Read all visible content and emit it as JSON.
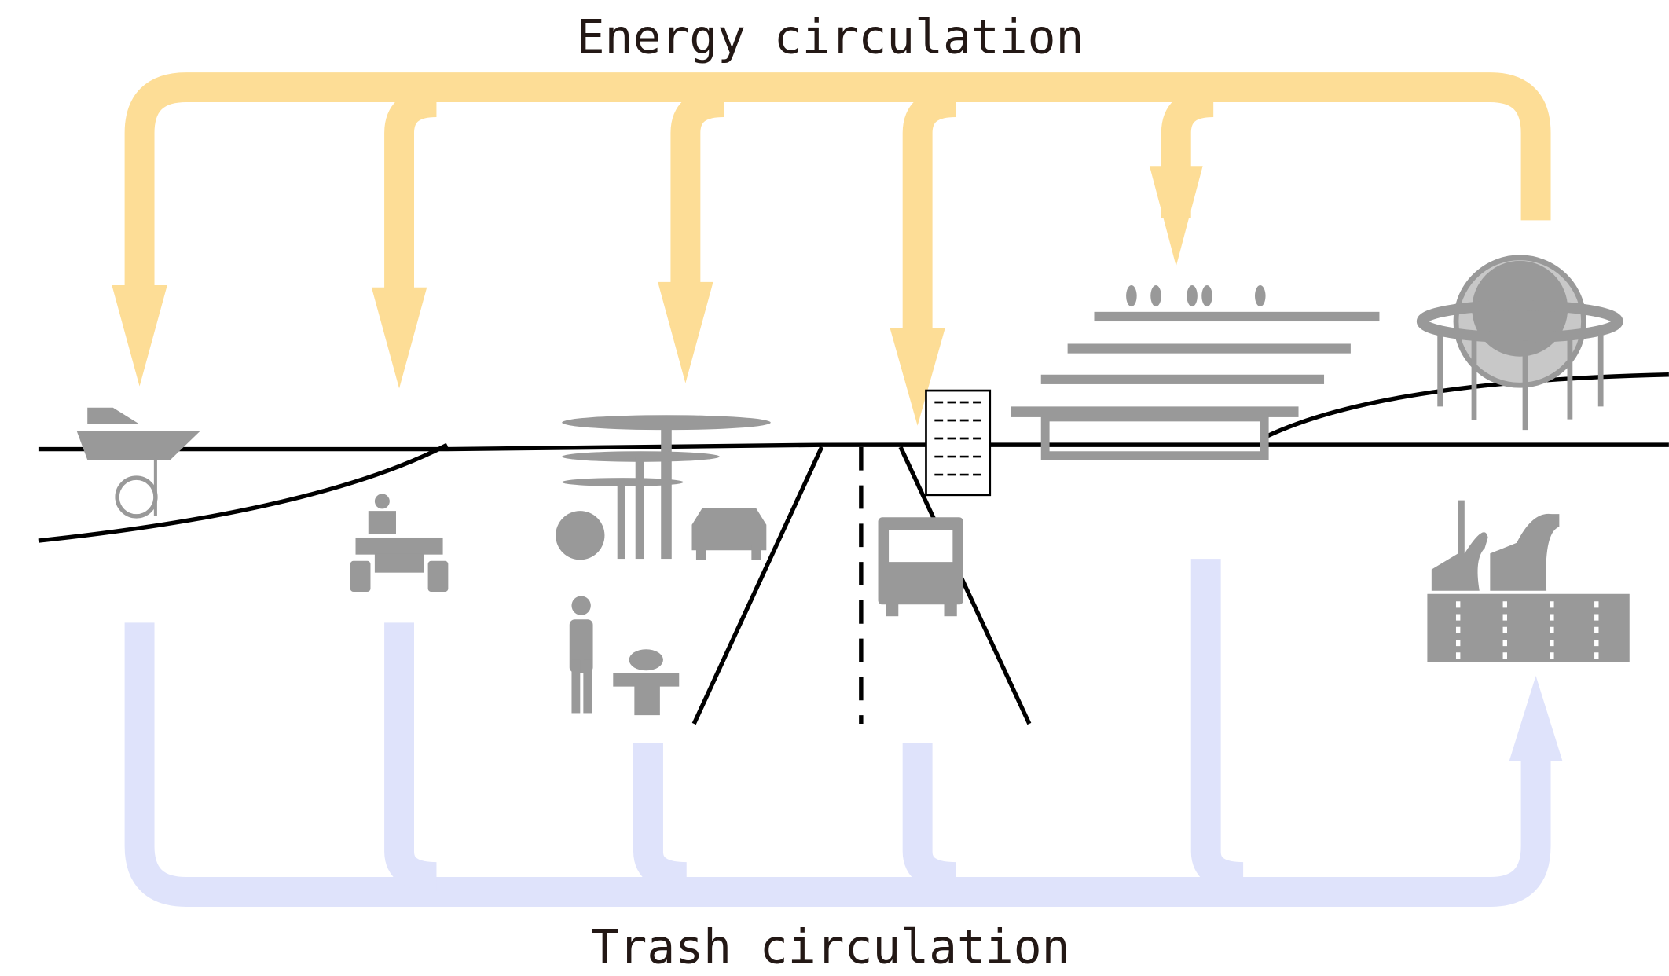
{
  "labels": {
    "top": "Energy circulation",
    "bottom": "Trash circulation"
  }
}
